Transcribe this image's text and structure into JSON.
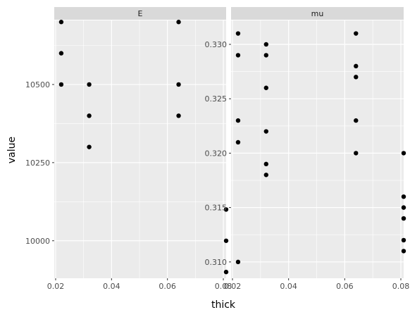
{
  "chart_data": {
    "type": "scatter",
    "xlabel": "thick",
    "ylabel": "value",
    "grid": true,
    "point_color": "#000000",
    "panel_background": "#ebebeb",
    "strip_background": "#d9d9d9",
    "x_ticks": [
      "0.02",
      "0.04",
      "0.06",
      "0.08"
    ],
    "x_tick_values": [
      0.02,
      0.04,
      0.06,
      0.08
    ],
    "panels": [
      {
        "label": "E",
        "xlim": [
          0.0195,
          0.081
        ],
        "ylim": [
          9880,
          10705
        ],
        "y_ticks": [
          "10000",
          "10250",
          "10500"
        ],
        "y_tick_values": [
          10000,
          10250,
          10500
        ],
        "points": [
          {
            "x": 0.022,
            "y": 10700
          },
          {
            "x": 0.022,
            "y": 10600
          },
          {
            "x": 0.022,
            "y": 10500
          },
          {
            "x": 0.032,
            "y": 10500
          },
          {
            "x": 0.032,
            "y": 10400
          },
          {
            "x": 0.032,
            "y": 10300
          },
          {
            "x": 0.064,
            "y": 10700
          },
          {
            "x": 0.064,
            "y": 10500
          },
          {
            "x": 0.064,
            "y": 10400
          },
          {
            "x": 0.081,
            "y": 10100
          },
          {
            "x": 0.081,
            "y": 10000
          },
          {
            "x": 0.081,
            "y": 9900
          }
        ]
      },
      {
        "label": "mu",
        "xlim": [
          0.0195,
          0.081
        ],
        "ylim": [
          0.3085,
          0.3322
        ],
        "y_ticks": [
          "0.310",
          "0.315",
          "0.320",
          "0.325",
          "0.330"
        ],
        "y_tick_values": [
          0.31,
          0.315,
          0.32,
          0.325,
          0.33
        ],
        "points": [
          {
            "x": 0.022,
            "y": 0.331
          },
          {
            "x": 0.022,
            "y": 0.329
          },
          {
            "x": 0.022,
            "y": 0.323
          },
          {
            "x": 0.022,
            "y": 0.321
          },
          {
            "x": 0.022,
            "y": 0.31
          },
          {
            "x": 0.032,
            "y": 0.33
          },
          {
            "x": 0.032,
            "y": 0.329
          },
          {
            "x": 0.032,
            "y": 0.326
          },
          {
            "x": 0.032,
            "y": 0.322
          },
          {
            "x": 0.032,
            "y": 0.319
          },
          {
            "x": 0.032,
            "y": 0.318
          },
          {
            "x": 0.064,
            "y": 0.331
          },
          {
            "x": 0.064,
            "y": 0.328
          },
          {
            "x": 0.064,
            "y": 0.327
          },
          {
            "x": 0.064,
            "y": 0.323
          },
          {
            "x": 0.064,
            "y": 0.32
          },
          {
            "x": 0.081,
            "y": 0.32
          },
          {
            "x": 0.081,
            "y": 0.316
          },
          {
            "x": 0.081,
            "y": 0.315
          },
          {
            "x": 0.081,
            "y": 0.314
          },
          {
            "x": 0.081,
            "y": 0.312
          },
          {
            "x": 0.081,
            "y": 0.311
          }
        ]
      }
    ]
  }
}
